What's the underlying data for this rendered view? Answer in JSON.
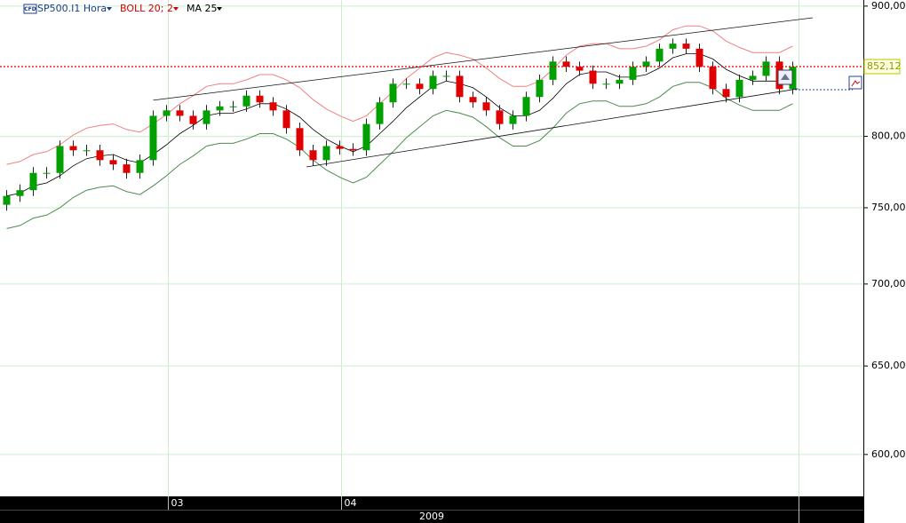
{
  "chart_data": {
    "type": "candlestick",
    "symbol": "SP500.I1 Hora",
    "symbol_badge": "CFD",
    "x_axis_label": "2009",
    "categories": [
      null,
      null,
      null,
      null,
      null,
      null,
      null,
      null,
      null,
      null,
      null,
      null,
      "03",
      null,
      null,
      null,
      null,
      null,
      null,
      null,
      null,
      null,
      null,
      null,
      null,
      "04",
      null,
      null,
      null,
      null,
      null,
      null,
      null,
      null,
      null,
      null,
      null,
      null,
      null,
      null,
      null,
      null,
      null,
      null,
      null,
      null,
      null,
      null,
      null,
      null,
      null,
      null,
      null,
      null,
      null,
      null,
      null,
      null,
      null,
      null
    ],
    "open": [
      752,
      758,
      762,
      774,
      774,
      793,
      790,
      790,
      783,
      780,
      774,
      783,
      815,
      819,
      815,
      809,
      819,
      822,
      822,
      830,
      825,
      819,
      806,
      790,
      783,
      793,
      791,
      790,
      809,
      825,
      839,
      839,
      835,
      845,
      845,
      829,
      825,
      819,
      809,
      815,
      829,
      842,
      856,
      852,
      849,
      839,
      839,
      842,
      852,
      856,
      866,
      870,
      866,
      852,
      835,
      829,
      842,
      845,
      856,
      835
    ],
    "high": [
      762,
      766,
      778,
      778,
      797,
      797,
      794,
      794,
      787,
      784,
      787,
      819,
      823,
      823,
      819,
      823,
      826,
      826,
      834,
      834,
      829,
      823,
      810,
      794,
      797,
      797,
      795,
      813,
      829,
      843,
      843,
      843,
      849,
      849,
      849,
      833,
      829,
      823,
      819,
      833,
      846,
      860,
      860,
      856,
      853,
      843,
      846,
      856,
      860,
      870,
      874,
      874,
      870,
      856,
      839,
      846,
      849,
      860,
      860,
      856
    ],
    "low": [
      748,
      754,
      758,
      770,
      770,
      786,
      786,
      779,
      776,
      770,
      770,
      779,
      811,
      811,
      805,
      805,
      815,
      818,
      818,
      821,
      815,
      802,
      786,
      779,
      779,
      787,
      786,
      786,
      805,
      821,
      835,
      831,
      831,
      841,
      825,
      821,
      815,
      805,
      805,
      811,
      825,
      838,
      848,
      845,
      835,
      835,
      835,
      838,
      848,
      852,
      862,
      862,
      848,
      831,
      825,
      825,
      838,
      841,
      831,
      831
    ],
    "close": [
      758,
      762,
      774,
      774,
      793,
      790,
      790,
      783,
      780,
      774,
      783,
      815,
      819,
      815,
      809,
      819,
      822,
      822,
      830,
      825,
      819,
      806,
      790,
      783,
      793,
      791,
      790,
      809,
      825,
      839,
      839,
      835,
      845,
      845,
      829,
      825,
      819,
      809,
      815,
      829,
      842,
      856,
      852,
      849,
      839,
      839,
      842,
      852,
      856,
      866,
      870,
      866,
      852,
      835,
      829,
      842,
      845,
      856,
      835,
      852
    ],
    "up_color": "#00a000",
    "down_color": "#e00000",
    "indicators": [
      {
        "name": "BOLL 20; 2",
        "color": "#d40000",
        "upper_color": "#f08080",
        "lower_color": "#4e8a4e",
        "upper": [
          780,
          782,
          787,
          789,
          794,
          801,
          806,
          808,
          809,
          805,
          803,
          809,
          816,
          824,
          830,
          837,
          839,
          839,
          842,
          846,
          846,
          842,
          836,
          827,
          820,
          815,
          811,
          815,
          824,
          833,
          843,
          851,
          859,
          863,
          861,
          858,
          851,
          843,
          837,
          837,
          841,
          850,
          861,
          868,
          870,
          870,
          866,
          866,
          868,
          873,
          881,
          884,
          884,
          880,
          872,
          867,
          863,
          863,
          863,
          868
        ],
        "lower": [
          736,
          738,
          743,
          745,
          750,
          757,
          762,
          764,
          765,
          761,
          759,
          765,
          772,
          780,
          786,
          793,
          795,
          795,
          798,
          802,
          802,
          798,
          792,
          783,
          776,
          771,
          767,
          771,
          780,
          789,
          799,
          807,
          815,
          819,
          817,
          814,
          807,
          799,
          793,
          793,
          797,
          806,
          817,
          824,
          826,
          826,
          822,
          822,
          824,
          829,
          837,
          840,
          840,
          836,
          828,
          823,
          819,
          819,
          819,
          824
        ]
      },
      {
        "name": "MA 25",
        "color": "#000000",
        "values": [
          758,
          760,
          765,
          767,
          772,
          779,
          784,
          786,
          787,
          783,
          781,
          787,
          794,
          802,
          808,
          815,
          817,
          817,
          820,
          824,
          824,
          820,
          814,
          805,
          798,
          793,
          789,
          793,
          802,
          811,
          821,
          829,
          837,
          841,
          839,
          836,
          829,
          821,
          815,
          815,
          819,
          828,
          839,
          846,
          848,
          848,
          844,
          844,
          846,
          851,
          859,
          862,
          862,
          858,
          850,
          845,
          841,
          841,
          841,
          846
        ]
      }
    ],
    "trendlines": [
      {
        "x": [
          11,
          60.5
        ],
        "y": [
          826.6,
          890.6
        ]
      },
      {
        "x": [
          22.5,
          59.4
        ],
        "y": [
          778.2,
          835.2
        ]
      }
    ],
    "last_price": {
      "value": 852.12,
      "label": "852,12"
    },
    "log_scale": true,
    "grid": true,
    "ylim": [
      577.7,
      905
    ],
    "yticks": [
      {
        "value": 900,
        "label": "900,00"
      },
      {
        "value": 800,
        "label": "800,00"
      },
      {
        "value": 750,
        "label": "750,00"
      },
      {
        "value": 700,
        "label": "700,00"
      },
      {
        "value": 650,
        "label": "650,00"
      },
      {
        "value": 600,
        "label": "600,00"
      }
    ]
  }
}
